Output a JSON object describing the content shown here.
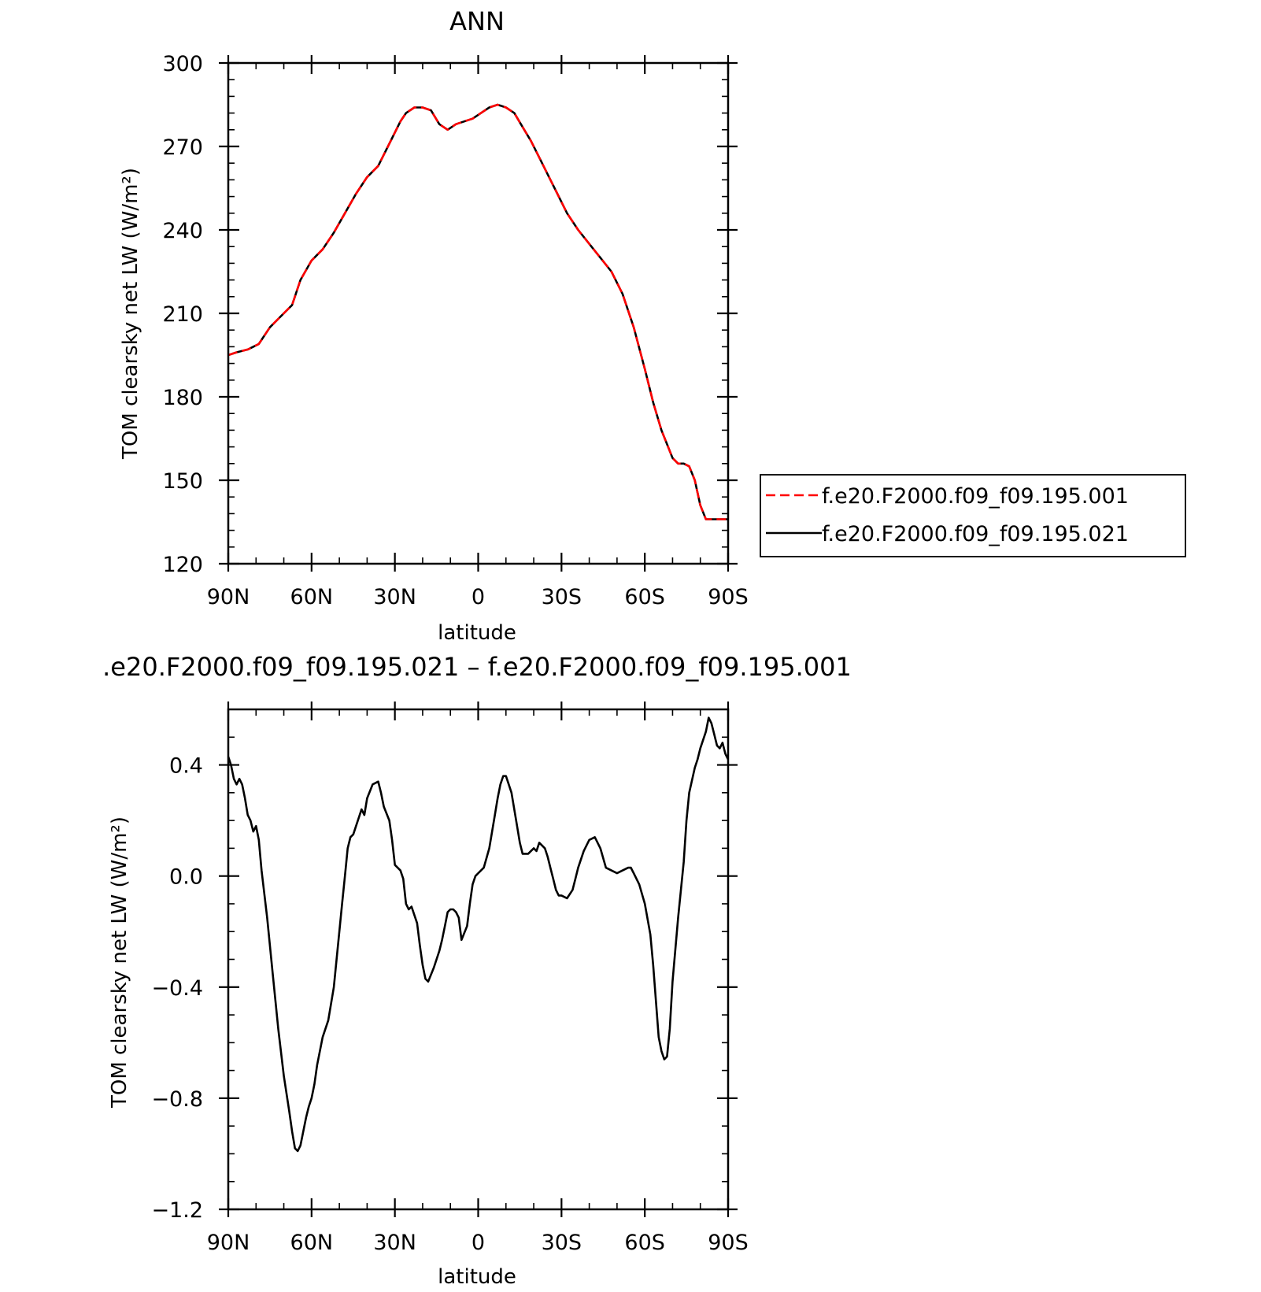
{
  "chart_data": [
    {
      "type": "line",
      "title": "ANN",
      "xlabel": "latitude",
      "ylabel": "TOM clearsky net LW (W/m²)",
      "xlim": [
        90,
        -90
      ],
      "ylim": [
        120,
        300
      ],
      "x_ticks": [
        90,
        60,
        30,
        0,
        -30,
        -60,
        -90
      ],
      "x_tick_labels": [
        "90N",
        "60N",
        "30N",
        "0",
        "30S",
        "60S",
        "90S"
      ],
      "y_ticks": [
        120,
        150,
        180,
        210,
        240,
        270,
        300
      ],
      "y_tick_labels": [
        "120",
        "150",
        "180",
        "210",
        "240",
        "270",
        "300"
      ],
      "grid": false,
      "legend_position": "right",
      "x": [
        90,
        87,
        83,
        79,
        75,
        71,
        67,
        64,
        60,
        56,
        52,
        48,
        44,
        40,
        36,
        32,
        28,
        26,
        23,
        20,
        17,
        14,
        11,
        8,
        5,
        2,
        -1,
        -4,
        -7,
        -10,
        -13,
        -16,
        -19,
        -22,
        -25,
        -28,
        -32,
        -36,
        -40,
        -44,
        -48,
        -52,
        -56,
        -60,
        -63,
        -66,
        -68,
        -70,
        -72,
        -74,
        -76,
        -78,
        -80,
        -82,
        -84,
        -86,
        -88,
        -90
      ],
      "series": [
        {
          "name": "f.e20.F2000.f09_f09.195.001",
          "color": "#ff0000",
          "dash": "dashed",
          "values": [
            195,
            196,
            197,
            199,
            205,
            209,
            213,
            222,
            229,
            233,
            239,
            246,
            253,
            259,
            263,
            271,
            279,
            282,
            284,
            284,
            283,
            278,
            276,
            278,
            279,
            280,
            282,
            284,
            285,
            284,
            282,
            277,
            272,
            266,
            260,
            254,
            246,
            240,
            235,
            230,
            225,
            217,
            205,
            190,
            178,
            168,
            163,
            158,
            156,
            156,
            155,
            150,
            141,
            136,
            136,
            136,
            136,
            136
          ]
        },
        {
          "name": "f.e20.F2000.f09_f09.195.021",
          "color": "#000000",
          "dash": "solid",
          "values": [
            195,
            196,
            197,
            199,
            205,
            209,
            213,
            222,
            229,
            233,
            239,
            246,
            253,
            259,
            263,
            271,
            279,
            282,
            284,
            284,
            283,
            278,
            276,
            278,
            279,
            280,
            282,
            284,
            285,
            284,
            282,
            277,
            272,
            266,
            260,
            254,
            246,
            240,
            235,
            230,
            225,
            217,
            205,
            190,
            178,
            168,
            163,
            158,
            156,
            156,
            155,
            150,
            141,
            136,
            136,
            136,
            136,
            136
          ]
        }
      ]
    },
    {
      "type": "line",
      "title": ".e20.F2000.f09_f09.195.021 – f.e20.F2000.f09_f09.195.001",
      "xlabel": "latitude",
      "ylabel": "TOM clearsky net LW (W/m²)",
      "xlim": [
        90,
        -90
      ],
      "ylim": [
        -1.2,
        0.6
      ],
      "x_ticks": [
        90,
        60,
        30,
        0,
        -30,
        -60,
        -90
      ],
      "x_tick_labels": [
        "90N",
        "60N",
        "30N",
        "0",
        "30S",
        "60S",
        "90S"
      ],
      "y_ticks": [
        -1.2,
        -0.8,
        -0.4,
        0.0,
        0.4
      ],
      "y_tick_labels": [
        "−1.2",
        "−0.8",
        "−0.4",
        "0.0",
        "0.4"
      ],
      "grid": false,
      "x": [
        90,
        89,
        88,
        87,
        86,
        85,
        84,
        83,
        82,
        81,
        80,
        79,
        78,
        76,
        74,
        72,
        70,
        68,
        67,
        66,
        65,
        64,
        62,
        61,
        60,
        59,
        58,
        56,
        54,
        52,
        50,
        49,
        48,
        47,
        46,
        45,
        44,
        43,
        42,
        41,
        40,
        38,
        36,
        35,
        34,
        32,
        31,
        30,
        29,
        28,
        27,
        26,
        25,
        24,
        22,
        21,
        20,
        19,
        18,
        16,
        14,
        13,
        12,
        11,
        10,
        9,
        8,
        7,
        6,
        4,
        3,
        2,
        1,
        0,
        -2,
        -4,
        -6,
        -7,
        -8,
        -9,
        -10,
        -12,
        -14,
        -15,
        -16,
        -18,
        -19,
        -20,
        -21,
        -22,
        -24,
        -25,
        -26,
        -27,
        -28,
        -29,
        -30,
        -32,
        -34,
        -35,
        -36,
        -38,
        -40,
        -42,
        -44,
        -46,
        -48,
        -50,
        -52,
        -54,
        -55,
        -56,
        -58,
        -60,
        -62,
        -63,
        -64,
        -65,
        -66,
        -67,
        -68,
        -69,
        -70,
        -72,
        -74,
        -75,
        -76,
        -78,
        -79,
        -80,
        -82,
        -83,
        -84,
        -85,
        -86,
        -87,
        -88,
        -89,
        -90
      ],
      "series": [
        {
          "name": "",
          "color": "#000000",
          "dash": "solid",
          "values": [
            0.43,
            0.4,
            0.35,
            0.33,
            0.35,
            0.33,
            0.28,
            0.22,
            0.2,
            0.16,
            0.18,
            0.13,
            0.02,
            -0.15,
            -0.35,
            -0.55,
            -0.72,
            -0.85,
            -0.92,
            -0.98,
            -0.99,
            -0.97,
            -0.87,
            -0.83,
            -0.8,
            -0.75,
            -0.68,
            -0.58,
            -0.52,
            -0.4,
            -0.2,
            -0.1,
            0.0,
            0.1,
            0.14,
            0.15,
            0.18,
            0.21,
            0.24,
            0.22,
            0.28,
            0.33,
            0.34,
            0.3,
            0.25,
            0.2,
            0.13,
            0.04,
            0.03,
            0.02,
            -0.01,
            -0.1,
            -0.12,
            -0.11,
            -0.17,
            -0.25,
            -0.32,
            -0.37,
            -0.38,
            -0.33,
            -0.27,
            -0.23,
            -0.18,
            -0.13,
            -0.12,
            -0.12,
            -0.13,
            -0.15,
            -0.23,
            -0.18,
            -0.1,
            -0.03,
            0.0,
            0.01,
            0.03,
            0.1,
            0.22,
            0.28,
            0.33,
            0.36,
            0.36,
            0.3,
            0.18,
            0.12,
            0.08,
            0.08,
            0.09,
            0.1,
            0.09,
            0.12,
            0.1,
            0.07,
            0.03,
            -0.01,
            -0.05,
            -0.07,
            -0.07,
            -0.08,
            -0.05,
            -0.01,
            0.03,
            0.09,
            0.13,
            0.14,
            0.1,
            0.03,
            0.02,
            0.01,
            0.02,
            0.03,
            0.03,
            0.01,
            -0.03,
            -0.1,
            -0.21,
            -0.32,
            -0.45,
            -0.58,
            -0.63,
            -0.66,
            -0.65,
            -0.55,
            -0.38,
            -0.15,
            0.05,
            0.2,
            0.3,
            0.39,
            0.42,
            0.46,
            0.52,
            0.57,
            0.55,
            0.51,
            0.47,
            0.46,
            0.48,
            0.44,
            0.42
          ]
        }
      ]
    }
  ]
}
